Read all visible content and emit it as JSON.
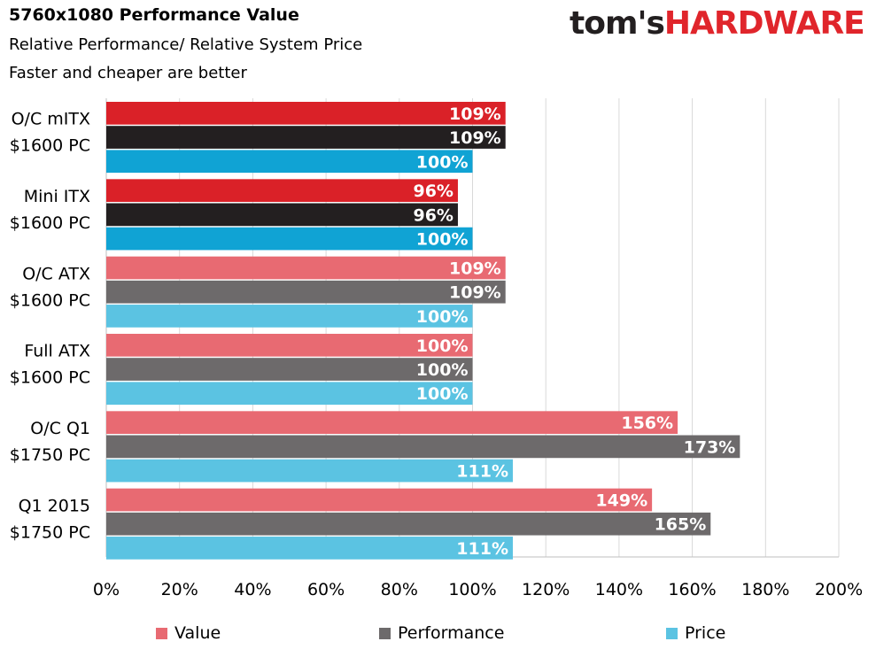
{
  "header": {
    "title": "5760x1080 Performance Value",
    "subtitle_1": "Relative Performance/ Relative System Price",
    "subtitle_2": "Faster and cheaper are better"
  },
  "logo": {
    "part1": "tom's",
    "part2": "HARDWARE"
  },
  "colors": {
    "value": "#e86a72",
    "performance": "#6d6a6b",
    "price": "#5bc3e2",
    "value_highlight": "#da2128",
    "performance_highlight": "#231f20",
    "price_highlight": "#10a3d4",
    "gridline": "#d9d9d9"
  },
  "chart_data": {
    "type": "bar",
    "orientation": "horizontal",
    "categories": [
      [
        "O/C mITX",
        "$1600 PC"
      ],
      [
        "Mini ITX",
        "$1600 PC"
      ],
      [
        "O/C ATX",
        "$1600 PC"
      ],
      [
        "Full ATX",
        "$1600 PC"
      ],
      [
        "O/C Q1",
        "$1750 PC"
      ],
      [
        "Q1 2015",
        "$1750 PC"
      ]
    ],
    "highlighted_categories": [
      0,
      1
    ],
    "series": [
      {
        "name": "Value",
        "values": [
          109,
          96,
          109,
          100,
          156,
          149
        ]
      },
      {
        "name": "Performance",
        "values": [
          109,
          96,
          109,
          100,
          173,
          165
        ]
      },
      {
        "name": "Price",
        "values": [
          100,
          100,
          100,
          100,
          111,
          111
        ]
      }
    ],
    "value_labels": [
      [
        "109%",
        "109%",
        "100%"
      ],
      [
        "96%",
        "96%",
        "100%"
      ],
      [
        "109%",
        "109%",
        "100%"
      ],
      [
        "100%",
        "100%",
        "100%"
      ],
      [
        "156%",
        "173%",
        "111%"
      ],
      [
        "149%",
        "165%",
        "111%"
      ]
    ],
    "xlim": [
      0,
      200
    ],
    "x_ticks": [
      "0%",
      "20%",
      "40%",
      "60%",
      "80%",
      "100%",
      "120%",
      "140%",
      "160%",
      "180%",
      "200%"
    ],
    "grid": true,
    "legend_position": "bottom"
  }
}
